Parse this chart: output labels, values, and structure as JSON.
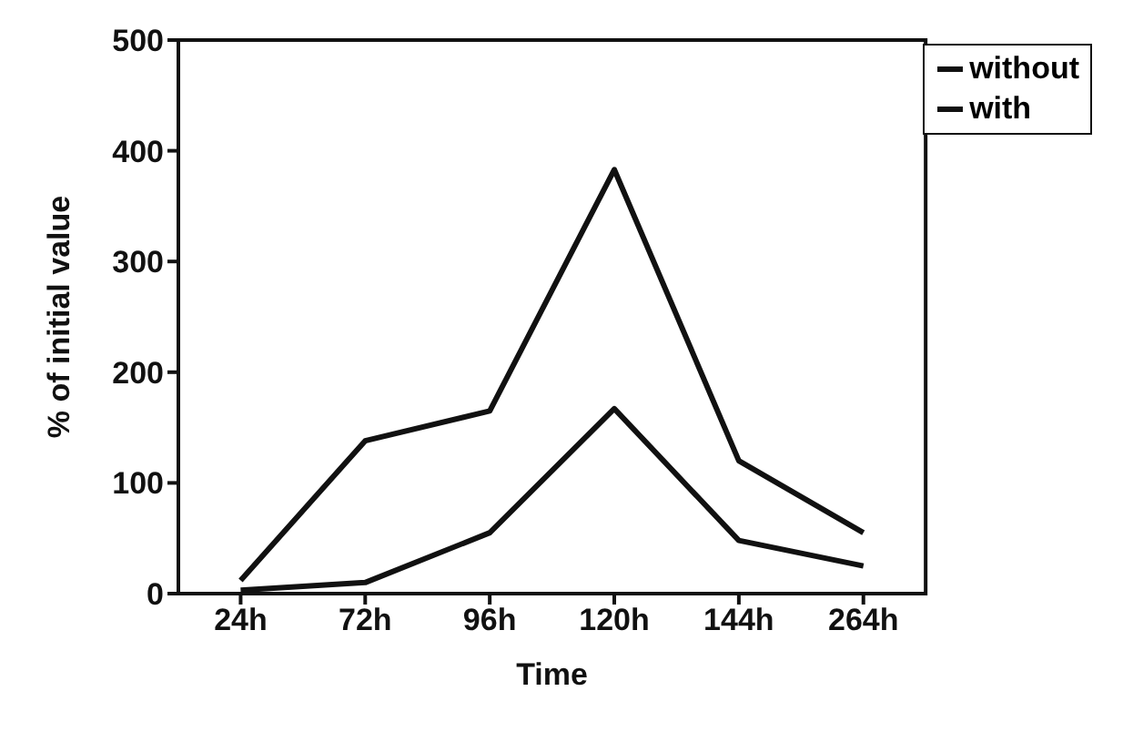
{
  "chart_data": {
    "type": "line",
    "xlabel": "Time",
    "ylabel": "% of initial value",
    "categories": [
      "24h",
      "72h",
      "96h",
      "120h",
      "144h",
      "264h"
    ],
    "series": [
      {
        "name": "without",
        "color": "#111111",
        "values": [
          12,
          138,
          165,
          383,
          120,
          55
        ]
      },
      {
        "name": "with",
        "color": "#111111",
        "values": [
          3,
          10,
          55,
          167,
          48,
          25
        ]
      }
    ],
    "ylim": [
      0,
      500
    ],
    "yticks": [
      0,
      100,
      200,
      300,
      400,
      500
    ],
    "grid": false,
    "legend": "top right",
    "marker": "none",
    "line_style": "solid"
  }
}
